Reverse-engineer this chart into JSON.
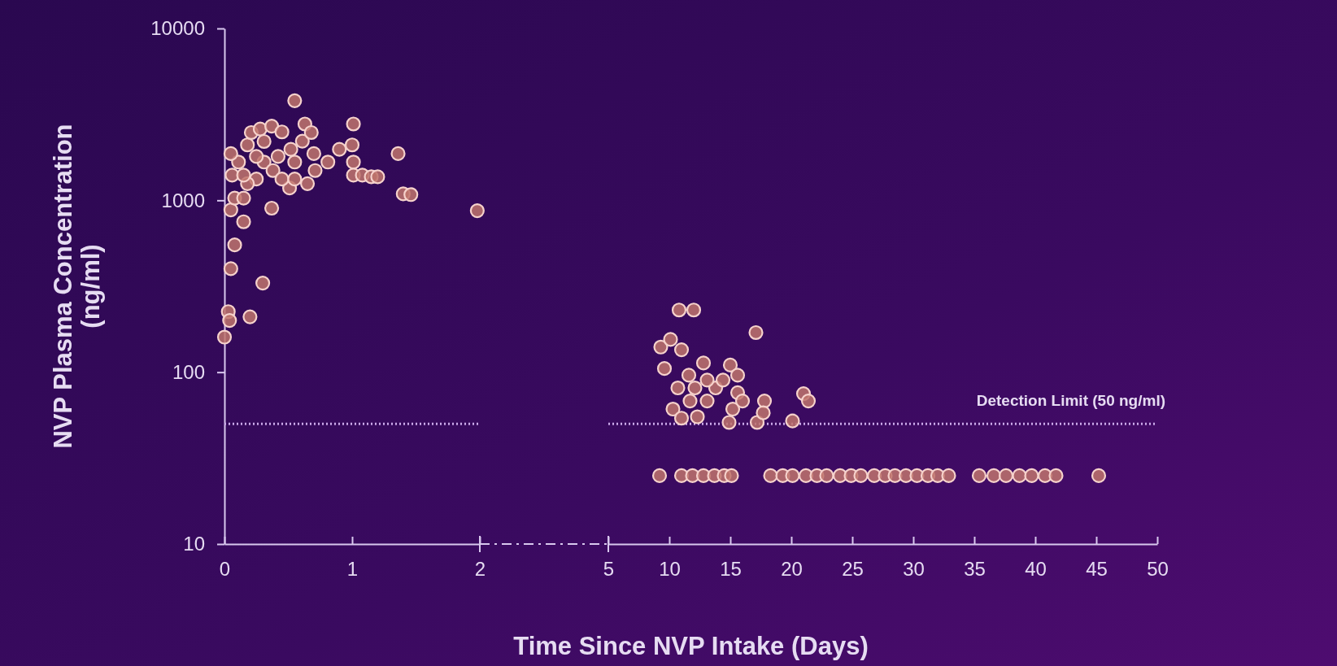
{
  "chart_data": [
    {
      "type": "scatter",
      "ylabel": "NVP Plasma Concentration (ng/ml)",
      "xlabel": "Time Since NVP Intake (Days)",
      "log": "y",
      "marker": "circle",
      "xlim": [
        0,
        2
      ],
      "xticks": [
        0,
        1,
        2
      ],
      "ylim": [
        10,
        10000
      ],
      "yticks": [
        10,
        100,
        1000,
        10000
      ],
      "ref_lines": [
        {
          "axis": "y",
          "value": 50,
          "label": null,
          "color": "#c9a8e8",
          "line_style": "dotted"
        }
      ],
      "series": [
        {
          "color": "#c0746c",
          "x": [
            0.55,
            0,
            0.03,
            0.04,
            0.05,
            0.2,
            0.3,
            0.37,
            0.08,
            0.15,
            0.05,
            0.08,
            0.15,
            0.06,
            0.11,
            0.05,
            0.18,
            0.21,
            0.28,
            0.37,
            0.45,
            0.31,
            0.38,
            0.25,
            0.18,
            0.15,
            0.51,
            0.45,
            0.55,
            0.55,
            0.61,
            0.63,
            0.68,
            0.7,
            0.65,
            0.71,
            0.81,
            0.9,
            1.01,
            1.0,
            1.01,
            1.01,
            1.08,
            1.15,
            1.2,
            1.36,
            1.4,
            1.46,
            1.98,
            0.42,
            0.52,
            0.25,
            0.31
          ],
          "values": [
            3800,
            160,
            225,
            200,
            400,
            210,
            330,
            900,
            550,
            750,
            880,
            1030,
            1030,
            1400,
            1670,
            1870,
            2100,
            2480,
            2600,
            2700,
            2500,
            1670,
            1490,
            1330,
            1250,
            1400,
            1180,
            1330,
            1670,
            1330,
            2210,
            2780,
            2480,
            1870,
            1250,
            1490,
            1670,
            1980,
            2780,
            2100,
            1670,
            1400,
            1400,
            1370,
            1370,
            1870,
            1090,
            1080,
            870,
            1800,
            1980,
            1800,
            2200
          ]
        }
      ]
    },
    {
      "type": "scatter",
      "log": "y",
      "marker": "circle",
      "xlim": [
        5,
        50
      ],
      "xticks": [
        5,
        10,
        15,
        20,
        25,
        30,
        35,
        40,
        45,
        50
      ],
      "ylim": [
        10,
        10000
      ],
      "tick_labels": "x",
      "ref_lines": [
        {
          "axis": "y",
          "value": 50,
          "label": "Detection Limit (50 ng/ml)",
          "color": "#c9a8e8",
          "line_style": "dotted"
        }
      ],
      "series": [
        {
          "color": "#c0746c",
          "x": [
            9.2,
            11.0,
            11.9,
            12.8,
            13.7,
            14.5,
            15.1,
            18.3,
            19.3,
            20.1,
            21.2,
            22.1,
            22.9,
            24.0,
            24.9,
            25.7,
            26.8,
            27.7,
            28.5,
            29.4,
            30.3,
            31.2,
            32.0,
            32.9,
            35.4,
            36.6,
            37.6,
            38.7,
            39.7,
            40.8,
            41.7,
            45.2,
            10.8,
            12.0,
            9.3,
            10.1,
            11.0,
            9.6,
            10.7,
            11.6,
            12.8,
            11.7,
            10.3,
            11.0,
            12.3,
            13.1,
            13.8,
            14.4,
            15.0,
            15.6,
            15.6,
            15.2,
            14.9,
            16.0,
            17.1,
            17.8,
            17.2,
            17.7,
            20.1,
            21.0,
            21.4,
            13.1,
            12.1
          ],
          "values": [
            25,
            25,
            25,
            25,
            25,
            25,
            25,
            25,
            25,
            25,
            25,
            25,
            25,
            25,
            25,
            25,
            25,
            25,
            25,
            25,
            25,
            25,
            25,
            25,
            25,
            25,
            25,
            25,
            25,
            25,
            25,
            25,
            230,
            230,
            140,
            155,
            135,
            105,
            81,
            96,
            113,
            68,
            61,
            54,
            55,
            68,
            81,
            90,
            110,
            96,
            76,
            61,
            51,
            68,
            170,
            68,
            51,
            58,
            52,
            75,
            68,
            90,
            81
          ]
        }
      ]
    }
  ]
}
